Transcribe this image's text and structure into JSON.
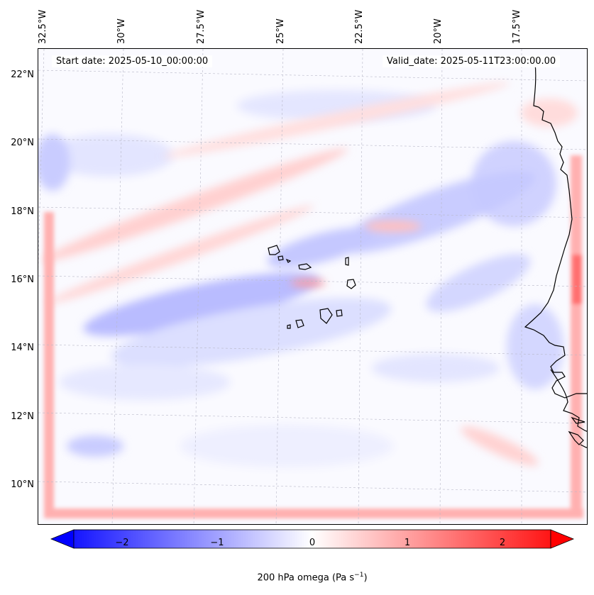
{
  "map": {
    "start_date": "Start date: 2025-05-10_00:00:00",
    "valid_date": "Valid_date: 2025-05-11T23:00:00.00",
    "lon_labels": [
      "32.5°W",
      "30°W",
      "27.5°W",
      "25°W",
      "22.5°W",
      "20°W",
      "17.5°W"
    ],
    "lat_labels": [
      "22°N",
      "20°N",
      "18°N",
      "16°N",
      "14°N",
      "12°N",
      "10°N"
    ],
    "extent": {
      "lon_min": -32.8,
      "lon_max": -15.5,
      "lat_min": 8.9,
      "lat_max": 22.8
    },
    "coastline_color": "#000000",
    "gridlines": true
  },
  "colorbar": {
    "ticks": [
      "−2",
      "−1",
      "0",
      "1",
      "2"
    ],
    "label_main": "200 hPa omega (Pa s",
    "label_sup": "−1",
    "label_end": ")",
    "range": [
      -2.6,
      2.6
    ],
    "cmap": "bwr",
    "low_color": "#0000ff",
    "mid_color": "#ffffff",
    "high_color": "#ff0000"
  }
}
